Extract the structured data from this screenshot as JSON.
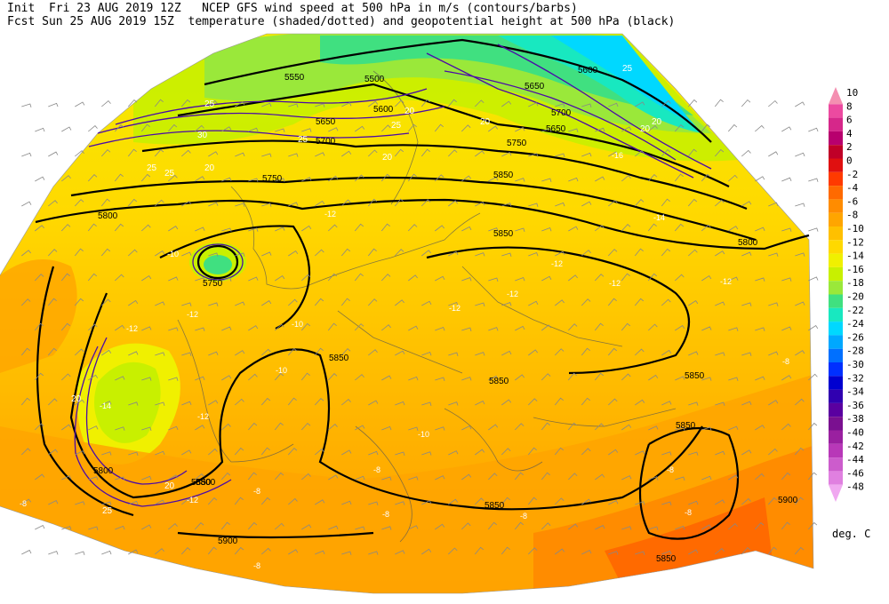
{
  "header": {
    "line1": "Init  Fri 23 AUG 2019 12Z   NCEP GFS wind speed at 500 hPa in m/s (contours/barbs)",
    "line2": "Fcst Sun 25 AUG 2019 15Z  temperature (shaded/dotted) and geopotential height at 500 hPa (black)"
  },
  "legend": {
    "units": "deg. C",
    "levels": [
      {
        "label": "10",
        "color": "#f48fb1"
      },
      {
        "label": "8",
        "color": "#ec4aa0"
      },
      {
        "label": "6",
        "color": "#d6278a"
      },
      {
        "label": "4",
        "color": "#b8006e"
      },
      {
        "label": "2",
        "color": "#c00028"
      },
      {
        "label": "0",
        "color": "#e01010"
      },
      {
        "label": "-2",
        "color": "#ff3a00"
      },
      {
        "label": "-4",
        "color": "#ff6a00"
      },
      {
        "label": "-6",
        "color": "#ff8c00"
      },
      {
        "label": "-8",
        "color": "#ffa500"
      },
      {
        "label": "-10",
        "color": "#ffc000"
      },
      {
        "label": "-12",
        "color": "#ffd900"
      },
      {
        "label": "-14",
        "color": "#f0f000"
      },
      {
        "label": "-16",
        "color": "#c8f000"
      },
      {
        "label": "-18",
        "color": "#9ae83a"
      },
      {
        "label": "-20",
        "color": "#40e080"
      },
      {
        "label": "-22",
        "color": "#18e8c0"
      },
      {
        "label": "-24",
        "color": "#00d8ff"
      },
      {
        "label": "-26",
        "color": "#00a8ff"
      },
      {
        "label": "-28",
        "color": "#0070ff"
      },
      {
        "label": "-30",
        "color": "#0030ff"
      },
      {
        "label": "-32",
        "color": "#0000d0"
      },
      {
        "label": "-34",
        "color": "#3000b0"
      },
      {
        "label": "-36",
        "color": "#5a00a0"
      },
      {
        "label": "-38",
        "color": "#7a1090"
      },
      {
        "label": "-40",
        "color": "#9a20a0"
      },
      {
        "label": "-42",
        "color": "#b838b8"
      },
      {
        "label": "-44",
        "color": "#cc5ccc"
      },
      {
        "label": "-46",
        "color": "#e080e0"
      },
      {
        "label": "-48",
        "color": "#f0a8f0"
      }
    ]
  },
  "map": {
    "height_labels": [
      "5550",
      "5500",
      "5600",
      "5650",
      "5650",
      "5700",
      "5700",
      "5750",
      "5750",
      "5800",
      "5800",
      "5850",
      "5850",
      "5800",
      "5850",
      "5850",
      "5850",
      "5850",
      "5850",
      "5800",
      "5850",
      "5900",
      "5900",
      "5850",
      "5750",
      "5600",
      "5650"
    ],
    "temp_labels": [
      "-10",
      "-12",
      "-12",
      "-14",
      "-12",
      "-10",
      "-12",
      "-12",
      "-12",
      "-12",
      "-14",
      "-16",
      "-12",
      "-10",
      "-10",
      "-8",
      "-8",
      "-8",
      "-8",
      "-8",
      "-8",
      "-8",
      "-12",
      "-8",
      "-12",
      "-8"
    ],
    "wind_labels": [
      "25",
      "30",
      "25",
      "20",
      "20",
      "25",
      "20",
      "25",
      "20",
      "20",
      "25",
      "20",
      "25",
      "20",
      "25",
      "20"
    ]
  }
}
